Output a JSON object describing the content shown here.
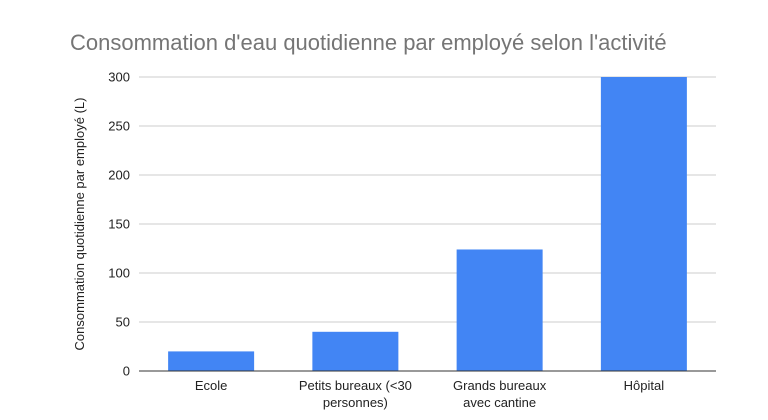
{
  "chart_data": {
    "type": "bar",
    "title": "Consommation d'eau quotidienne par employé selon l'activité",
    "xlabel": "",
    "ylabel": "Consommation quotidienne par employé (L)",
    "categories": [
      [
        "Ecole"
      ],
      [
        "Petits bureaux (<30",
        "personnes)"
      ],
      [
        "Grands bureaux",
        "avec cantine"
      ],
      [
        "Hôpital"
      ]
    ],
    "values": [
      20,
      40,
      124,
      300
    ],
    "ylim": [
      0,
      300
    ],
    "yticks": [
      "0",
      "50",
      "100",
      "150",
      "200",
      "250",
      "300"
    ],
    "grid": true,
    "legend": "none",
    "bar_color": "#4285f4",
    "title_color": "#757575",
    "text_color": "#222222",
    "grid_color": "#cccccc"
  }
}
